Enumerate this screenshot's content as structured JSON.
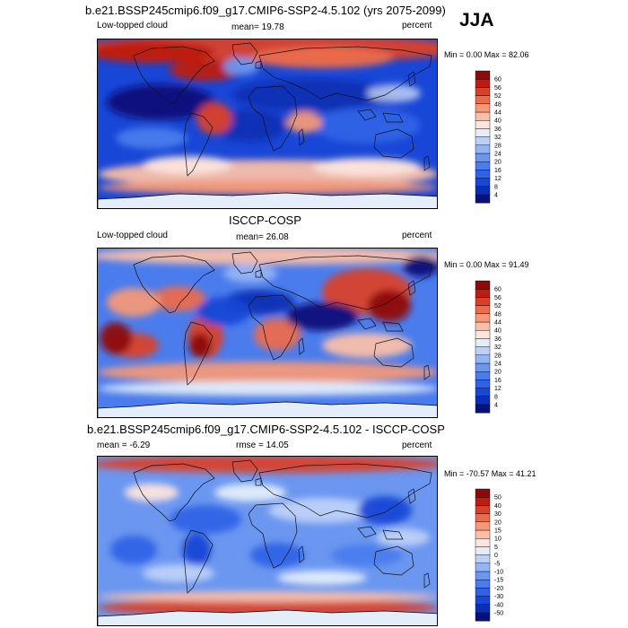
{
  "season": "JJA",
  "chart_data": [
    {
      "type": "heatmap",
      "title": "b.e21.BSSP245cmip6.f09_g17.CMIP6-SSP2-4.5.102 (yrs 2075-2099)",
      "variable": "Low-topped cloud",
      "stat_label": "mean=  19.78",
      "units": "percent",
      "minmax": "Min =   0.00 Max =  82.06",
      "levels": [
        "4",
        "8",
        "12",
        "16",
        "20",
        "24",
        "28",
        "32",
        "36",
        "40",
        "44",
        "48",
        "52",
        "56",
        "60"
      ],
      "colors": [
        "#08117a",
        "#0a2fb4",
        "#1846d6",
        "#2f62e6",
        "#4a7ced",
        "#6b97f1",
        "#93b4f5",
        "#bdd1f8",
        "#e4eefb",
        "#fde5dc",
        "#f9bfa9",
        "#f39878",
        "#ea6c4d",
        "#d9402a",
        "#bd1d10",
        "#8d0a0a"
      ]
    },
    {
      "type": "heatmap",
      "title": "ISCCP-COSP",
      "variable": "Low-topped cloud",
      "stat_label": "mean=  26.08",
      "units": "percent",
      "minmax": "Min =   0.00 Max =  91.49",
      "levels": [
        "4",
        "8",
        "12",
        "16",
        "20",
        "24",
        "28",
        "32",
        "36",
        "40",
        "44",
        "48",
        "52",
        "56",
        "60"
      ],
      "colors": [
        "#08117a",
        "#0a2fb4",
        "#1846d6",
        "#2f62e6",
        "#4a7ced",
        "#6b97f1",
        "#93b4f5",
        "#bdd1f8",
        "#e4eefb",
        "#fde5dc",
        "#f9bfa9",
        "#f39878",
        "#ea6c4d",
        "#d9402a",
        "#bd1d10",
        "#8d0a0a"
      ]
    },
    {
      "type": "heatmap",
      "title": "b.e21.BSSP245cmip6.f09_g17.CMIP6-SSP2-4.5.102 - ISCCP-COSP",
      "variable": "",
      "stat_label": "mean =  -6.29",
      "rmse_label": "rmse =  14.05",
      "units": "percent",
      "minmax": "Min = -70.57 Max =  41.21",
      "levels": [
        "-50",
        "-40",
        "-30",
        "-20",
        "-15",
        "-10",
        "-5",
        "0",
        "5",
        "10",
        "15",
        "20",
        "30",
        "40",
        "50"
      ],
      "colors": [
        "#08117a",
        "#0a2fb4",
        "#1846d6",
        "#2f62e6",
        "#4a7ced",
        "#6b97f1",
        "#93b4f5",
        "#bdd1f8",
        "#e4eefb",
        "#fde5dc",
        "#f9bfa9",
        "#f39878",
        "#ea6c4d",
        "#d9402a",
        "#bd1d10",
        "#8d0a0a"
      ]
    }
  ]
}
